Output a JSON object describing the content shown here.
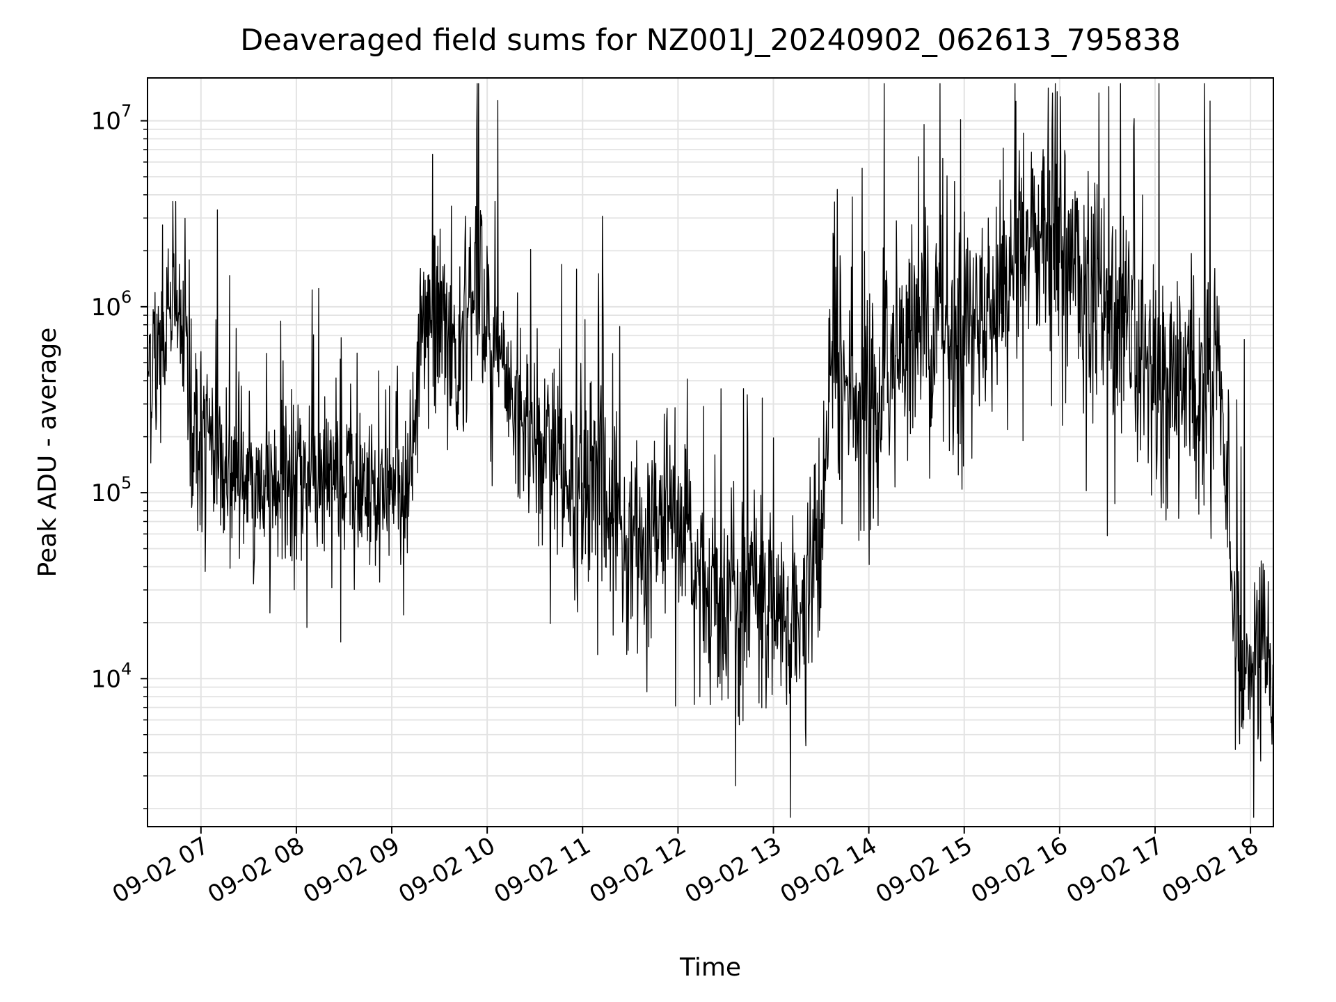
{
  "chart_data": {
    "type": "line",
    "title": "Deaveraged field sums for NZ001J_20240902_062613_795838",
    "xlabel": "Time",
    "ylabel": "Peak ADU - average",
    "x_tick_labels": [
      "09-02 07",
      "09-02 08",
      "09-02 09",
      "09-02 10",
      "09-02 11",
      "09-02 12",
      "09-02 13",
      "09-02 14",
      "09-02 15",
      "09-02 16",
      "09-02 17",
      "09-02 18"
    ],
    "x_ticks_hours": [
      7,
      8,
      9,
      10,
      11,
      12,
      13,
      14,
      15,
      16,
      17,
      18
    ],
    "y_tick_labels": [
      {
        "base": "10",
        "exp": "4",
        "value": 10000
      },
      {
        "base": "10",
        "exp": "5",
        "value": 100000
      },
      {
        "base": "10",
        "exp": "6",
        "value": 1000000
      },
      {
        "base": "10",
        "exp": "7",
        "value": 10000000
      }
    ],
    "y_scale": "log",
    "xlim_hours": [
      6.44,
      18.24
    ],
    "ylim": [
      1600,
      17000000
    ],
    "grid": true,
    "line_color": "#000000",
    "series": [
      {
        "x_hours": [
          6.45,
          6.6,
          6.7,
          6.8,
          6.9,
          7.0,
          7.2,
          7.5,
          8.0,
          8.5,
          9.0,
          9.2,
          9.3,
          9.5,
          9.7,
          9.9,
          10.0,
          10.2,
          10.5,
          10.7,
          10.9,
          11.2,
          11.4,
          11.7,
          11.9,
          12.2,
          12.5,
          12.8,
          13.0,
          13.2,
          13.5,
          13.6,
          13.8,
          14.0,
          14.3,
          14.6,
          14.9,
          15.2,
          15.5,
          15.8,
          16.0,
          16.3,
          16.6,
          16.9,
          17.2,
          17.5,
          17.7,
          17.85,
          18.0,
          18.24
        ],
        "values": [
          550000,
          520000,
          1400000,
          700000,
          330000,
          170000,
          150000,
          110000,
          110000,
          115000,
          90000,
          110000,
          600000,
          900000,
          450000,
          2200000,
          900000,
          300000,
          200000,
          150000,
          110000,
          150000,
          50000,
          55000,
          100000,
          35000,
          30000,
          32000,
          22000,
          18000,
          55000,
          500000,
          350000,
          250000,
          600000,
          900000,
          700000,
          800000,
          1800000,
          2500000,
          2000000,
          1300000,
          700000,
          450000,
          420000,
          400000,
          300000,
          15000,
          14000,
          12000
        ]
      }
    ]
  }
}
